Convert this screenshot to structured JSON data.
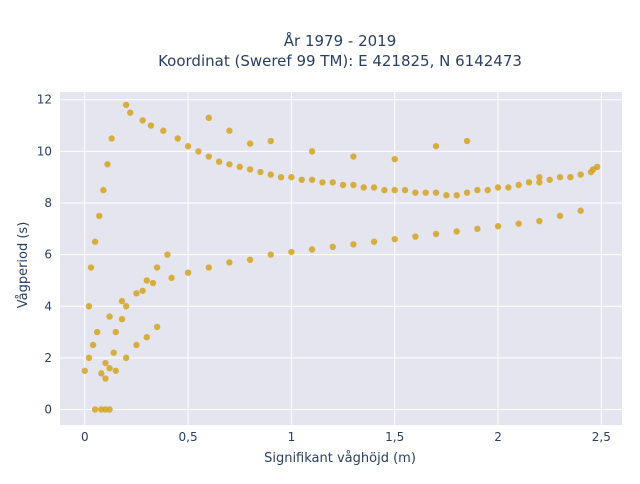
{
  "chart_data": {
    "type": "scatter",
    "title": "År 1979 - 2019",
    "subtitle": "Koordinat (Sweref 99 TM): E 421825, N 6142473",
    "xlabel": "Signifikant våghöjd (m)",
    "ylabel": "Vågperiod (s)",
    "xlim": [
      -0.12,
      2.6
    ],
    "ylim": [
      -0.6,
      12.3
    ],
    "x_ticks": [
      0,
      0.5,
      1,
      1.5,
      2,
      2.5
    ],
    "x_tick_labels": [
      "0",
      "0,5",
      "1",
      "1,5",
      "2",
      "2,5"
    ],
    "y_ticks": [
      0,
      2,
      4,
      6,
      8,
      10,
      12
    ],
    "y_tick_labels": [
      "0",
      "2",
      "4",
      "6",
      "8",
      "10",
      "12"
    ],
    "grid": true,
    "legend": "none",
    "point_color": "#d4a520",
    "plot_background": "#e5e5f0",
    "series": [
      {
        "x": [
          0.0,
          0.02,
          0.04,
          0.06,
          0.08,
          0.1,
          0.12,
          0.14,
          0.02,
          0.03,
          0.05,
          0.07,
          0.09,
          0.11,
          0.13,
          0.05,
          0.08,
          0.1,
          0.12,
          0.15,
          0.18,
          0.2,
          0.25,
          0.3,
          0.35,
          0.4,
          0.2,
          0.22,
          0.28,
          0.32,
          0.38,
          0.45,
          0.5,
          0.55,
          0.6,
          0.65,
          0.7,
          0.75,
          0.8,
          0.85,
          0.9,
          0.95,
          1.0,
          1.05,
          1.1,
          1.15,
          1.2,
          1.25,
          1.3,
          1.35,
          1.4,
          1.45,
          1.5,
          1.55,
          1.6,
          1.65,
          1.7,
          1.75,
          1.8,
          1.85,
          1.9,
          1.95,
          2.0,
          2.05,
          2.1,
          2.15,
          2.2,
          2.25,
          2.3,
          2.35,
          2.4,
          2.45,
          2.48,
          0.1,
          0.15,
          0.2,
          0.25,
          0.3,
          0.35,
          0.12,
          0.18,
          0.28,
          0.33,
          0.42,
          0.5,
          0.6,
          0.7,
          0.8,
          0.9,
          1.0,
          1.1,
          1.2,
          1.3,
          1.4,
          1.5,
          1.6,
          1.7,
          1.8,
          1.9,
          2.0,
          2.1,
          2.2,
          2.3,
          2.4,
          0.6,
          0.7,
          0.8,
          0.9,
          1.1,
          1.3,
          1.5,
          1.7,
          1.85,
          2.2,
          2.46
        ],
        "y": [
          1.5,
          2.0,
          2.5,
          3.0,
          1.4,
          1.8,
          1.6,
          2.2,
          4.0,
          5.5,
          6.5,
          7.5,
          8.5,
          9.5,
          10.5,
          0.0,
          0.0,
          0.0,
          0.0,
          3.0,
          3.5,
          4.0,
          4.5,
          5.0,
          5.5,
          6.0,
          11.8,
          11.5,
          11.2,
          11.0,
          10.8,
          10.5,
          10.2,
          10.0,
          9.8,
          9.6,
          9.5,
          9.4,
          9.3,
          9.2,
          9.1,
          9.0,
          9.0,
          8.9,
          8.9,
          8.8,
          8.8,
          8.7,
          8.7,
          8.6,
          8.6,
          8.5,
          8.5,
          8.5,
          8.4,
          8.4,
          8.4,
          8.3,
          8.3,
          8.4,
          8.5,
          8.5,
          8.6,
          8.6,
          8.7,
          8.8,
          8.8,
          8.9,
          9.0,
          9.0,
          9.1,
          9.2,
          9.4,
          1.2,
          1.5,
          2.0,
          2.5,
          2.8,
          3.2,
          3.6,
          4.2,
          4.6,
          4.9,
          5.1,
          5.3,
          5.5,
          5.7,
          5.8,
          6.0,
          6.1,
          6.2,
          6.3,
          6.4,
          6.5,
          6.6,
          6.7,
          6.8,
          6.9,
          7.0,
          7.1,
          7.2,
          7.3,
          7.5,
          7.7,
          11.3,
          10.8,
          10.3,
          10.4,
          10.0,
          9.8,
          9.7,
          10.2,
          10.4,
          9.0,
          9.3
        ]
      }
    ]
  }
}
